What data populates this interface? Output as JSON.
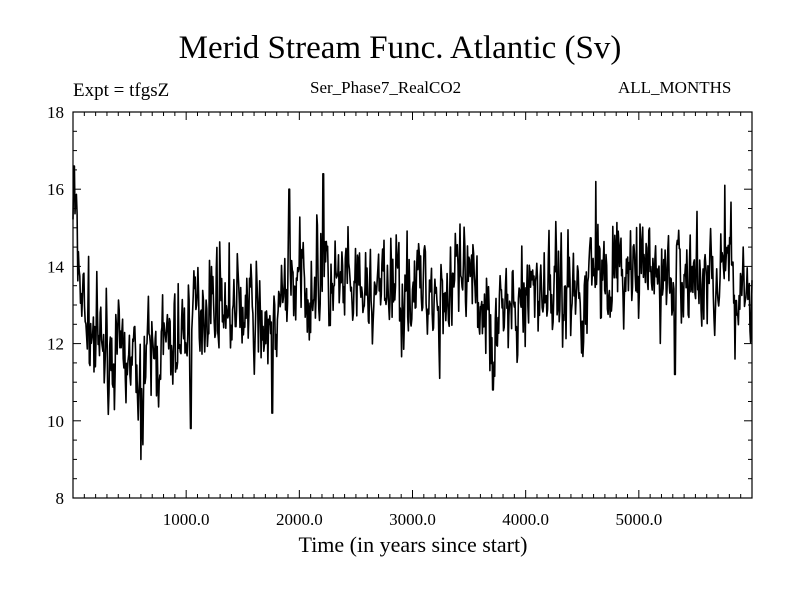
{
  "chart_data": {
    "type": "line",
    "title": "Merid Stream Func. Atlantic (Sv)",
    "subtitle_left": "Expt = tfgsZ",
    "subtitle_center": "Ser_Phase7_RealCO2",
    "subtitle_right": "ALL_MONTHS",
    "xlabel": "Time (in years since start)",
    "ylabel": "",
    "xlim": [
      0,
      6000
    ],
    "ylim": [
      8,
      18
    ],
    "x_ticks": [
      1000,
      2000,
      3000,
      4000,
      5000
    ],
    "x_tick_labels": [
      "1000.0",
      "2000.0",
      "3000.0",
      "4000.0",
      "5000.0"
    ],
    "y_ticks": [
      8,
      10,
      12,
      14,
      16,
      18
    ],
    "y_tick_labels": [
      "8",
      "10",
      "12",
      "14",
      "16",
      "18"
    ],
    "grid": false,
    "series": [
      {
        "name": "Merid Stream Func. Atlantic",
        "color": "#000000",
        "noise_amplitude": 0.9,
        "trend": {
          "x": [
            0,
            30,
            60,
            100,
            200,
            300,
            400,
            500,
            600,
            700,
            800,
            900,
            1000,
            1100,
            1200,
            1300,
            1400,
            1500,
            1600,
            1700,
            1800,
            1900,
            2000,
            2100,
            2200,
            2300,
            2400,
            2500,
            2600,
            2700,
            2800,
            2900,
            3000,
            3100,
            3200,
            3300,
            3400,
            3500,
            3600,
            3700,
            3800,
            3900,
            4000,
            4100,
            4200,
            4300,
            4400,
            4500,
            4600,
            4700,
            4800,
            4900,
            5000,
            5100,
            5200,
            5300,
            5400,
            5500,
            5600,
            5700,
            5800,
            5900,
            6000
          ],
          "y": [
            15.6,
            14.6,
            13.8,
            12.8,
            12.0,
            11.8,
            11.6,
            11.5,
            11.3,
            11.7,
            11.9,
            12.0,
            12.3,
            13.1,
            13.0,
            13.3,
            12.8,
            12.9,
            12.7,
            12.4,
            12.6,
            13.4,
            13.6,
            13.5,
            13.6,
            13.4,
            13.4,
            13.3,
            13.3,
            13.2,
            13.6,
            13.5,
            13.5,
            13.5,
            13.4,
            13.3,
            13.6,
            13.4,
            13.2,
            12.7,
            12.9,
            12.6,
            13.4,
            13.6,
            13.4,
            13.5,
            13.4,
            13.2,
            14.0,
            13.8,
            13.9,
            13.7,
            13.9,
            13.8,
            13.7,
            13.7,
            13.8,
            13.7,
            13.6,
            13.9,
            13.8,
            13.6,
            13.7
          ]
        },
        "peaks": [
          {
            "x": 10,
            "y": 16.6
          },
          {
            "x": 600,
            "y": 9.0
          },
          {
            "x": 1040,
            "y": 9.8
          },
          {
            "x": 1760,
            "y": 10.2
          },
          {
            "x": 1910,
            "y": 16.0
          },
          {
            "x": 2210,
            "y": 16.4
          },
          {
            "x": 3240,
            "y": 11.1
          },
          {
            "x": 3710,
            "y": 10.8
          },
          {
            "x": 4620,
            "y": 16.2
          },
          {
            "x": 5320,
            "y": 11.2
          },
          {
            "x": 5760,
            "y": 16.1
          },
          {
            "x": 5850,
            "y": 11.6
          }
        ]
      }
    ]
  }
}
